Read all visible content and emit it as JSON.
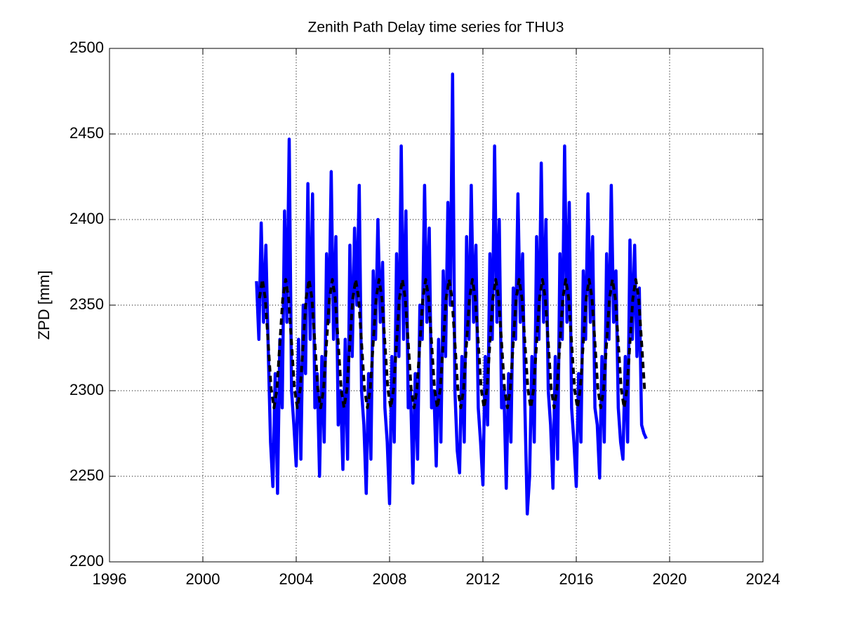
{
  "chart_data": {
    "type": "line",
    "title": "Zenith Path Delay time series for THU3",
    "ylabel": "ZPD [mm]",
    "xlim": [
      1996,
      2024
    ],
    "xticks": [
      1996,
      2000,
      2004,
      2008,
      2012,
      2016,
      2020,
      2024
    ],
    "ylim": [
      2200,
      2500
    ],
    "yticks": [
      2200,
      2250,
      2300,
      2350,
      2400,
      2450,
      2500
    ],
    "grid": true,
    "series": [
      {
        "color": "#0000ff",
        "dashed": false,
        "x": [
          2002.3,
          2002.4,
          2002.5,
          2002.6,
          2002.7,
          2002.8,
          2002.9,
          2003.0,
          2003.1,
          2003.2,
          2003.3,
          2003.4,
          2003.5,
          2003.6,
          2003.7,
          2003.8,
          2003.9,
          2004.0,
          2004.1,
          2004.2,
          2004.3,
          2004.4,
          2004.5,
          2004.6,
          2004.7,
          2004.8,
          2004.9,
          2005.0,
          2005.1,
          2005.2,
          2005.3,
          2005.4,
          2005.5,
          2005.6,
          2005.7,
          2005.8,
          2005.9,
          2006.0,
          2006.1,
          2006.2,
          2006.3,
          2006.4,
          2006.5,
          2006.6,
          2006.7,
          2006.8,
          2006.9,
          2007.0,
          2007.1,
          2007.2,
          2007.3,
          2007.4,
          2007.5,
          2007.6,
          2007.7,
          2007.8,
          2007.9,
          2008.0,
          2008.1,
          2008.2,
          2008.3,
          2008.4,
          2008.5,
          2008.6,
          2008.7,
          2008.8,
          2008.9,
          2009.0,
          2009.1,
          2009.2,
          2009.3,
          2009.4,
          2009.5,
          2009.6,
          2009.7,
          2009.8,
          2009.9,
          2010.0,
          2010.1,
          2010.2,
          2010.3,
          2010.4,
          2010.5,
          2010.6,
          2010.7,
          2010.8,
          2010.9,
          2011.0,
          2011.1,
          2011.2,
          2011.3,
          2011.4,
          2011.5,
          2011.6,
          2011.7,
          2011.8,
          2011.9,
          2012.0,
          2012.1,
          2012.2,
          2012.3,
          2012.4,
          2012.5,
          2012.6,
          2012.7,
          2012.8,
          2012.9,
          2013.0,
          2013.1,
          2013.2,
          2013.3,
          2013.4,
          2013.5,
          2013.6,
          2013.7,
          2013.8,
          2013.9,
          2014.0,
          2014.1,
          2014.2,
          2014.3,
          2014.4,
          2014.5,
          2014.6,
          2014.7,
          2014.8,
          2014.9,
          2015.0,
          2015.1,
          2015.2,
          2015.3,
          2015.4,
          2015.5,
          2015.6,
          2015.7,
          2015.8,
          2015.9,
          2016.0,
          2016.1,
          2016.2,
          2016.3,
          2016.4,
          2016.5,
          2016.6,
          2016.7,
          2016.8,
          2016.9,
          2017.0,
          2017.1,
          2017.2,
          2017.3,
          2017.4,
          2017.5,
          2017.6,
          2017.7,
          2017.8,
          2017.9,
          2018.0,
          2018.1,
          2018.2,
          2018.3,
          2018.4,
          2018.5,
          2018.6,
          2018.7,
          2018.8,
          2018.9,
          2019.0
        ],
        "values": [
          2364,
          2330,
          2398,
          2340,
          2385,
          2325,
          2270,
          2244,
          2310,
          2240,
          2330,
          2290,
          2405,
          2340,
          2447,
          2300,
          2280,
          2256,
          2330,
          2260,
          2350,
          2310,
          2421,
          2330,
          2415,
          2290,
          2310,
          2250,
          2320,
          2270,
          2380,
          2340,
          2428,
          2330,
          2390,
          2280,
          2300,
          2254,
          2330,
          2260,
          2385,
          2320,
          2395,
          2350,
          2420,
          2300,
          2280,
          2240,
          2310,
          2260,
          2370,
          2330,
          2400,
          2340,
          2375,
          2290,
          2270,
          2234,
          2320,
          2270,
          2380,
          2320,
          2443,
          2330,
          2405,
          2290,
          2300,
          2246,
          2310,
          2260,
          2350,
          2330,
          2420,
          2340,
          2395,
          2290,
          2300,
          2256,
          2330,
          2270,
          2370,
          2320,
          2410,
          2350,
          2485,
          2300,
          2265,
          2252,
          2320,
          2270,
          2390,
          2330,
          2420,
          2340,
          2385,
          2290,
          2270,
          2245,
          2320,
          2280,
          2380,
          2330,
          2443,
          2340,
          2400,
          2290,
          2300,
          2243,
          2310,
          2270,
          2360,
          2330,
          2415,
          2340,
          2380,
          2290,
          2228,
          2250,
          2320,
          2270,
          2390,
          2330,
          2433,
          2340,
          2400,
          2300,
          2280,
          2243,
          2320,
          2260,
          2380,
          2330,
          2443,
          2340,
          2410,
          2290,
          2270,
          2244,
          2310,
          2270,
          2370,
          2330,
          2415,
          2340,
          2390,
          2290,
          2280,
          2249,
          2320,
          2270,
          2380,
          2330,
          2420,
          2340,
          2370,
          2290,
          2270,
          2260,
          2320,
          2270,
          2388,
          2330,
          2385,
          2320,
          2360,
          2280,
          2275,
          2272
        ]
      },
      {
        "color": "#000000",
        "dashed": true,
        "x": [
          2002.425,
          2002.55,
          2002.675,
          2002.8,
          2002.925,
          2003.05,
          2003.175,
          2003.3,
          2003.425,
          2003.55,
          2003.675,
          2003.8,
          2003.925,
          2004.05,
          2004.175,
          2004.3,
          2004.425,
          2004.55,
          2004.675,
          2004.8,
          2004.925,
          2005.05,
          2005.175,
          2005.3,
          2005.425,
          2005.55,
          2005.675,
          2005.8,
          2005.925,
          2006.05,
          2006.175,
          2006.3,
          2006.425,
          2006.55,
          2006.675,
          2006.8,
          2006.925,
          2007.05,
          2007.175,
          2007.3,
          2007.425,
          2007.55,
          2007.675,
          2007.8,
          2007.925,
          2008.05,
          2008.175,
          2008.3,
          2008.425,
          2008.55,
          2008.675,
          2008.8,
          2008.925,
          2009.05,
          2009.175,
          2009.3,
          2009.425,
          2009.55,
          2009.675,
          2009.8,
          2009.925,
          2010.05,
          2010.175,
          2010.3,
          2010.425,
          2010.55,
          2010.675,
          2010.8,
          2010.925,
          2011.05,
          2011.175,
          2011.3,
          2011.425,
          2011.55,
          2011.675,
          2011.8,
          2011.925,
          2012.05,
          2012.175,
          2012.3,
          2012.425,
          2012.55,
          2012.675,
          2012.8,
          2012.925,
          2013.05,
          2013.175,
          2013.3,
          2013.425,
          2013.55,
          2013.675,
          2013.8,
          2013.925,
          2014.05,
          2014.175,
          2014.3,
          2014.425,
          2014.55,
          2014.675,
          2014.8,
          2014.925,
          2015.05,
          2015.175,
          2015.3,
          2015.425,
          2015.55,
          2015.675,
          2015.8,
          2015.925,
          2016.05,
          2016.175,
          2016.3,
          2016.425,
          2016.55,
          2016.675,
          2016.8,
          2016.925,
          2017.05,
          2017.175,
          2017.3,
          2017.425,
          2017.55,
          2017.675,
          2017.8,
          2017.925,
          2018.05,
          2018.175,
          2018.3,
          2018.425,
          2018.55,
          2018.675,
          2018.8,
          2018.925
        ],
        "values": [
          2354,
          2365,
          2354,
          2328,
          2301,
          2290,
          2301,
          2328,
          2354,
          2365,
          2354,
          2328,
          2301,
          2290,
          2301,
          2328,
          2354,
          2365,
          2354,
          2328,
          2301,
          2290,
          2301,
          2328,
          2354,
          2365,
          2354,
          2328,
          2301,
          2290,
          2301,
          2328,
          2354,
          2365,
          2354,
          2328,
          2301,
          2290,
          2301,
          2328,
          2354,
          2365,
          2354,
          2328,
          2301,
          2290,
          2301,
          2328,
          2354,
          2365,
          2354,
          2328,
          2301,
          2290,
          2301,
          2328,
          2354,
          2365,
          2354,
          2328,
          2301,
          2290,
          2301,
          2328,
          2354,
          2365,
          2354,
          2328,
          2301,
          2290,
          2301,
          2328,
          2354,
          2365,
          2354,
          2328,
          2301,
          2290,
          2301,
          2328,
          2354,
          2365,
          2354,
          2328,
          2301,
          2290,
          2301,
          2328,
          2354,
          2365,
          2354,
          2328,
          2301,
          2290,
          2301,
          2328,
          2354,
          2365,
          2354,
          2328,
          2301,
          2290,
          2301,
          2328,
          2354,
          2365,
          2354,
          2328,
          2301,
          2290,
          2301,
          2328,
          2354,
          2365,
          2354,
          2328,
          2301,
          2290,
          2301,
          2328,
          2354,
          2365,
          2354,
          2328,
          2301,
          2290,
          2301,
          2328,
          2354,
          2365,
          2354,
          2328,
          2301
        ]
      }
    ]
  }
}
